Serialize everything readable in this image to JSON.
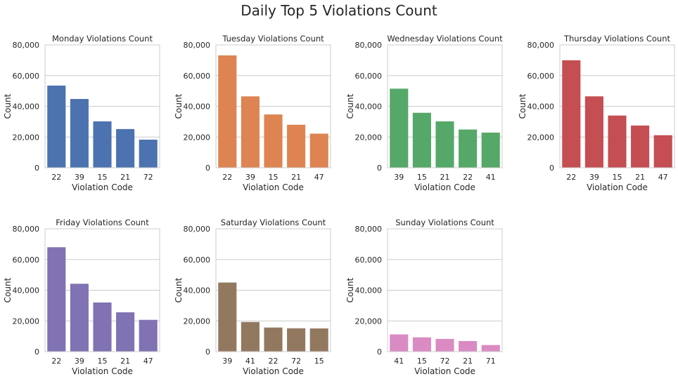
{
  "figure": {
    "title": "Daily Top 5 Violations Count"
  },
  "chart_data": [
    {
      "type": "bar",
      "title": "Monday Violations Count",
      "xlabel": "Violation Code",
      "ylabel": "Count",
      "ylim": [
        0,
        80000
      ],
      "yticks": [
        "0",
        "20,000",
        "40,000",
        "60,000",
        "80,000"
      ],
      "categories": [
        "22",
        "39",
        "15",
        "21",
        "72"
      ],
      "values": [
        53500,
        44800,
        30200,
        25200,
        18300
      ],
      "color": "#4c72b0"
    },
    {
      "type": "bar",
      "title": "Tuesday Violations Count",
      "xlabel": "Violation Code",
      "ylabel": "Count",
      "ylim": [
        0,
        80000
      ],
      "yticks": [
        "0",
        "20,000",
        "40,000",
        "60,000",
        "80,000"
      ],
      "categories": [
        "22",
        "39",
        "15",
        "21",
        "47"
      ],
      "values": [
        73200,
        46500,
        34700,
        28000,
        22200
      ],
      "color": "#dd8452"
    },
    {
      "type": "bar",
      "title": "Wednesday Violations Count",
      "xlabel": "Violation Code",
      "ylabel": "Count",
      "ylim": [
        0,
        80000
      ],
      "yticks": [
        "0",
        "20,000",
        "40,000",
        "60,000",
        "80,000"
      ],
      "categories": [
        "39",
        "15",
        "21",
        "22",
        "41"
      ],
      "values": [
        51500,
        35800,
        30200,
        24900,
        22900
      ],
      "color": "#55a868"
    },
    {
      "type": "bar",
      "title": "Thursday Violations Count",
      "xlabel": "Violation Code",
      "ylabel": "Count",
      "ylim": [
        0,
        80000
      ],
      "yticks": [
        "0",
        "20,000",
        "40,000",
        "60,000",
        "80,000"
      ],
      "categories": [
        "22",
        "39",
        "15",
        "21",
        "47"
      ],
      "values": [
        70000,
        46500,
        34000,
        27500,
        21200
      ],
      "color": "#c44e52"
    },
    {
      "type": "bar",
      "title": "Friday Violations Count",
      "xlabel": "Violation Code",
      "ylabel": "Count",
      "ylim": [
        0,
        80000
      ],
      "yticks": [
        "0",
        "20,000",
        "40,000",
        "60,000",
        "80,000"
      ],
      "categories": [
        "22",
        "39",
        "15",
        "21",
        "47"
      ],
      "values": [
        68000,
        44200,
        32000,
        25600,
        20700
      ],
      "color": "#8172b3"
    },
    {
      "type": "bar",
      "title": "Saturday Violations Count",
      "xlabel": "Violation Code",
      "ylabel": "Count",
      "ylim": [
        0,
        80000
      ],
      "yticks": [
        "0",
        "20,000",
        "40,000",
        "60,000",
        "80,000"
      ],
      "categories": [
        "39",
        "41",
        "22",
        "72",
        "15"
      ],
      "values": [
        45000,
        19300,
        15700,
        15200,
        15100
      ],
      "color": "#937860"
    },
    {
      "type": "bar",
      "title": "Sunday Violations Count",
      "xlabel": "Violation Code",
      "ylabel": "Count",
      "ylim": [
        0,
        80000
      ],
      "yticks": [
        "0",
        "20,000",
        "40,000",
        "60,000",
        "80,000"
      ],
      "categories": [
        "41",
        "15",
        "72",
        "21",
        "71"
      ],
      "values": [
        11200,
        9300,
        8300,
        6900,
        4300
      ],
      "color": "#da8bc3"
    }
  ]
}
